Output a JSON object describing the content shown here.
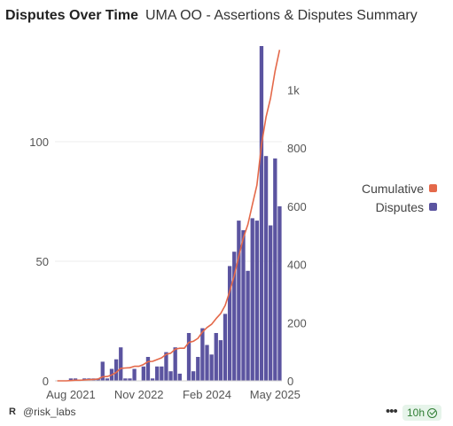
{
  "header": {
    "title": "Disputes Over Time",
    "subtitle": "UMA OO - Assertions & Disputes Summary"
  },
  "legend": {
    "cumulative_label": "Cumulative",
    "disputes_label": "Disputes"
  },
  "footer": {
    "brand_icon": "R",
    "handle": "@risk_labs",
    "more_icon": "•••",
    "refresh_label": "10h"
  },
  "colors": {
    "bar": "#5b54a0",
    "line": "#e4694a",
    "grid": "#ececec",
    "axis_text": "#555555"
  },
  "chart_data": {
    "type": "bar",
    "x_ticks": [
      "Aug 2021",
      "Nov 2022",
      "Feb 2024",
      "May 2025"
    ],
    "y_left": {
      "ticks": [
        0,
        50,
        100
      ],
      "range": [
        0,
        140
      ]
    },
    "y_right": {
      "ticks": [
        "0",
        "200",
        "400",
        "600",
        "800",
        "1k"
      ],
      "range": [
        0,
        1150
      ]
    },
    "x_start": "2021-05",
    "series": [
      {
        "name": "Disputes",
        "type": "bar",
        "axis": "left",
        "values": [
          0,
          0,
          0,
          1,
          1,
          0,
          1,
          1,
          1,
          1,
          8,
          1,
          5,
          9,
          14,
          1,
          1,
          5,
          0,
          6,
          10,
          1,
          6,
          6,
          12,
          4,
          14,
          3,
          0,
          20,
          4,
          10,
          22,
          15,
          11,
          20,
          17,
          28,
          48,
          54,
          67,
          63,
          46,
          68,
          67,
          140,
          94,
          65,
          93,
          73
        ]
      },
      {
        "name": "Cumulative",
        "type": "line",
        "axis": "right",
        "values": [
          0,
          0,
          0,
          1,
          2,
          2,
          3,
          4,
          5,
          6,
          14,
          15,
          20,
          29,
          43,
          44,
          45,
          50,
          50,
          56,
          66,
          67,
          73,
          79,
          91,
          95,
          109,
          112,
          112,
          132,
          136,
          146,
          168,
          183,
          194,
          214,
          231,
          259,
          307,
          361,
          428,
          491,
          537,
          605,
          672,
          812,
          906,
          971,
          1064,
          1137
        ]
      }
    ]
  }
}
